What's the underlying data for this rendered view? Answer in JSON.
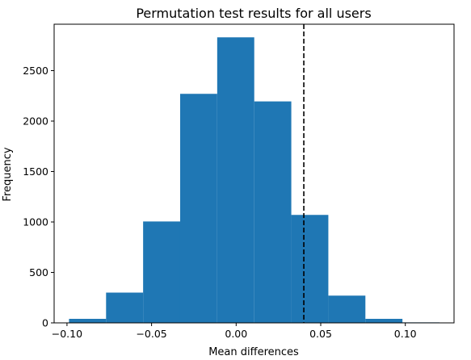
{
  "chart_data": {
    "type": "bar",
    "title": "Permutation test results for all users",
    "xlabel": "Mean differences",
    "ylabel": "Frequency",
    "bar_color": "#1f77b4",
    "line_color": "#000000",
    "xlim": [
      -0.1076,
      0.1288
    ],
    "ylim": [
      0,
      2960
    ],
    "x_ticks": [
      -0.1,
      -0.05,
      0.0,
      0.05,
      0.1
    ],
    "x_tick_labels": [
      "−0.10",
      "−0.05",
      "0.00",
      "0.05",
      "0.10"
    ],
    "y_ticks": [
      0,
      500,
      1000,
      1500,
      2000,
      2500
    ],
    "y_tick_labels": [
      "0",
      "500",
      "1000",
      "1500",
      "2000",
      "2500"
    ],
    "bin_edges": [
      -0.0988,
      -0.0769,
      -0.055,
      -0.0331,
      -0.0112,
      0.0107,
      0.0326,
      0.0545,
      0.0764,
      0.0983,
      0.1202
    ],
    "counts": [
      40,
      300,
      1005,
      2270,
      2830,
      2195,
      1070,
      270,
      40,
      5
    ],
    "observed_difference": 0.04,
    "observed_line_style": "dashed",
    "grid": false,
    "legend": false
  }
}
